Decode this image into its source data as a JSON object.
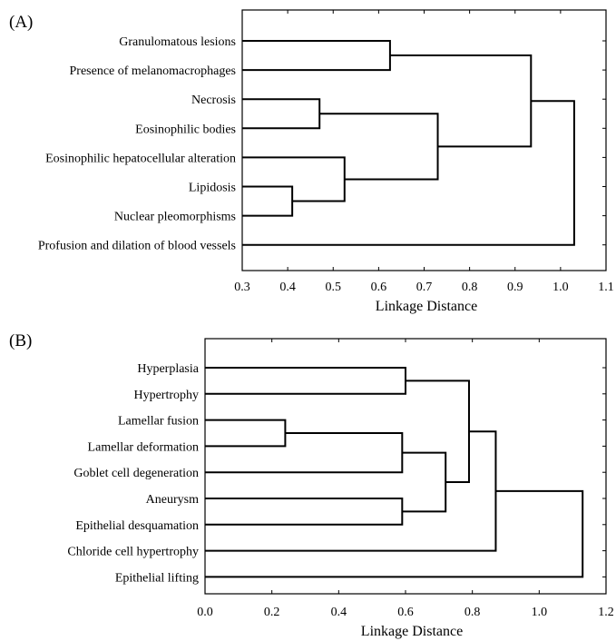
{
  "chart_data": [
    {
      "type": "dendrogram",
      "panel_label": "(A)",
      "xlabel": "Linkage Distance",
      "xlim": [
        0.3,
        1.1
      ],
      "xticks": [
        "0.3",
        "0.4",
        "0.5",
        "0.6",
        "0.7",
        "0.8",
        "0.9",
        "1.0",
        "1.1"
      ],
      "leaves": [
        "Granulomatous lesions",
        "Presence of melanomacrophages",
        "Necrosis",
        "Eosinophilic bodies",
        "Eosinophilic hepatocellular alteration",
        "Lipidosis",
        "Nuclear pleomorphisms",
        "Profusion and dilation of blood vessels"
      ],
      "merges": [
        {
          "left": "L5",
          "right": "L6",
          "distance": 0.41
        },
        {
          "left": "L4",
          "right": "M0",
          "distance": 0.525
        },
        {
          "left": "L2",
          "right": "L3",
          "distance": 0.47
        },
        {
          "left": "L0",
          "right": "L1",
          "distance": 0.625
        },
        {
          "left": "M2",
          "right": "M1",
          "distance": 0.73
        },
        {
          "left": "M3",
          "right": "M4",
          "distance": 0.935
        },
        {
          "left": "M5",
          "right": "L7",
          "distance": 1.03
        }
      ]
    },
    {
      "type": "dendrogram",
      "panel_label": "(B)",
      "xlabel": "Linkage Distance",
      "xlim": [
        0.0,
        1.2
      ],
      "xticks": [
        "0.0",
        "0.2",
        "0.4",
        "0.6",
        "0.8",
        "1.0",
        "1.2"
      ],
      "leaves": [
        "Hyperplasia",
        "Hypertrophy",
        "Lamellar fusion",
        "Lamellar deformation",
        "Goblet cell degeneration",
        "Aneurysm",
        "Epithelial desquamation",
        "Chloride cell hypertrophy",
        "Epithelial lifting"
      ],
      "merges": [
        {
          "left": "L2",
          "right": "L3",
          "distance": 0.24
        },
        {
          "left": "M0",
          "right": "L4",
          "distance": 0.59
        },
        {
          "left": "L5",
          "right": "L6",
          "distance": 0.59
        },
        {
          "left": "L0",
          "right": "L1",
          "distance": 0.6
        },
        {
          "left": "M1",
          "right": "M2",
          "distance": 0.72
        },
        {
          "left": "M3",
          "right": "M4",
          "distance": 0.79
        },
        {
          "left": "M5",
          "right": "L7",
          "distance": 0.87
        },
        {
          "left": "M6",
          "right": "L8",
          "distance": 1.13
        }
      ]
    }
  ]
}
